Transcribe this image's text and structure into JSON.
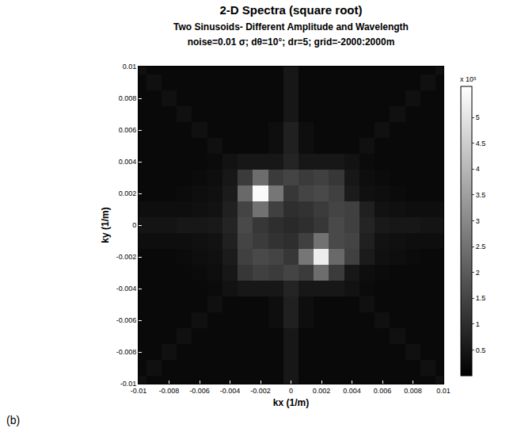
{
  "chart_data": {
    "type": "heatmap",
    "title": "2-D Spectra (square root)",
    "subtitle": [
      "Two Sinusoids- Different Amplitude and Wavelength",
      "noise=0.01 σ; dθ=10°; dr=5; grid=-2000:2000m"
    ],
    "panel": "(b)",
    "x_label": "kx (1/m)",
    "y_label": "ky (1/m)",
    "xlim": [
      -0.01,
      0.01
    ],
    "ylim": [
      -0.01,
      0.01
    ],
    "xticks": [
      -0.01,
      -0.008,
      -0.006,
      -0.004,
      -0.002,
      0,
      0.002,
      0.004,
      0.006,
      0.008,
      0.01
    ],
    "yticks": [
      -0.01,
      -0.008,
      -0.006,
      -0.004,
      -0.002,
      0,
      0.002,
      0.004,
      0.006,
      0.008,
      0.01
    ],
    "grid": false,
    "color": "gray",
    "x": [
      -0.01,
      -0.009,
      -0.008,
      -0.007,
      -0.006,
      -0.005,
      -0.004,
      -0.003,
      -0.002,
      -0.001,
      0,
      0.001,
      0.002,
      0.003,
      0.004,
      0.005,
      0.006,
      0.007,
      0.008,
      0.009,
      0.01
    ],
    "y": [
      -0.01,
      -0.009,
      -0.008,
      -0.007,
      -0.006,
      -0.005,
      -0.004,
      -0.003,
      -0.002,
      -0.001,
      0,
      0.001,
      0.002,
      0.003,
      0.004,
      0.005,
      0.006,
      0.007,
      0.008,
      0.009,
      0.01
    ],
    "z": [
      [
        0.35,
        0.2,
        0.2,
        0.2,
        0.2,
        0.2,
        0.2,
        0.2,
        0.2,
        0.2,
        0.5,
        0.2,
        0.2,
        0.2,
        0.2,
        0.2,
        0.2,
        0.2,
        0.2,
        0.2,
        0.35
      ],
      [
        0.2,
        0.35,
        0.2,
        0.2,
        0.2,
        0.2,
        0.2,
        0.2,
        0.2,
        0.2,
        0.5,
        0.2,
        0.2,
        0.2,
        0.2,
        0.2,
        0.2,
        0.2,
        0.2,
        0.35,
        0.2
      ],
      [
        0.2,
        0.2,
        0.35,
        0.2,
        0.2,
        0.2,
        0.2,
        0.2,
        0.2,
        0.2,
        0.5,
        0.2,
        0.2,
        0.2,
        0.2,
        0.2,
        0.2,
        0.2,
        0.35,
        0.2,
        0.2
      ],
      [
        0.2,
        0.2,
        0.2,
        0.35,
        0.2,
        0.2,
        0.2,
        0.2,
        0.2,
        0.2,
        0.5,
        0.2,
        0.2,
        0.2,
        0.2,
        0.2,
        0.2,
        0.35,
        0.2,
        0.2,
        0.2
      ],
      [
        0.2,
        0.2,
        0.2,
        0.2,
        0.35,
        0.2,
        0.2,
        0.2,
        0.2,
        0.3,
        0.7,
        0.3,
        0.2,
        0.2,
        0.2,
        0.2,
        0.35,
        0.2,
        0.2,
        0.2,
        0.2
      ],
      [
        0.2,
        0.2,
        0.2,
        0.2,
        0.2,
        0.35,
        0.2,
        0.2,
        0.2,
        0.3,
        0.7,
        0.3,
        0.2,
        0.2,
        0.2,
        0.35,
        0.2,
        0.2,
        0.2,
        0.2,
        0.2
      ],
      [
        0.2,
        0.2,
        0.2,
        0.2,
        0.2,
        0.25,
        0.4,
        0.5,
        0.5,
        0.5,
        0.8,
        0.5,
        0.5,
        0.5,
        0.4,
        0.25,
        0.2,
        0.2,
        0.2,
        0.2,
        0.2
      ],
      [
        0.2,
        0.2,
        0.2,
        0.2,
        0.25,
        0.3,
        0.5,
        1.2,
        1.4,
        1.3,
        1.5,
        1.3,
        2.4,
        1.3,
        0.5,
        0.3,
        0.25,
        0.2,
        0.2,
        0.2,
        0.2
      ],
      [
        0.2,
        0.2,
        0.2,
        0.25,
        0.3,
        0.35,
        0.6,
        1.4,
        1.6,
        1.5,
        1.2,
        2.6,
        5.2,
        2.3,
        1.4,
        0.6,
        0.35,
        0.3,
        0.25,
        0.2,
        0.2
      ],
      [
        0.3,
        0.3,
        0.3,
        0.3,
        0.35,
        0.4,
        0.7,
        1.5,
        1.3,
        1.1,
        1.0,
        1.4,
        2.5,
        1.6,
        1.5,
        0.7,
        0.4,
        0.35,
        0.3,
        0.3,
        0.3
      ],
      [
        0.45,
        0.45,
        0.45,
        0.5,
        0.5,
        0.55,
        0.8,
        1.6,
        1.2,
        1.0,
        0.9,
        1.0,
        1.2,
        1.6,
        1.4,
        0.8,
        0.55,
        0.5,
        0.5,
        0.45,
        0.45
      ],
      [
        0.3,
        0.3,
        0.3,
        0.3,
        0.35,
        0.4,
        0.7,
        1.5,
        2.5,
        1.4,
        1.0,
        1.1,
        1.3,
        1.5,
        1.4,
        0.7,
        0.4,
        0.35,
        0.3,
        0.3,
        0.3
      ],
      [
        0.2,
        0.2,
        0.2,
        0.25,
        0.3,
        0.35,
        0.6,
        2.3,
        5.5,
        2.6,
        1.2,
        1.5,
        1.6,
        1.4,
        0.6,
        0.35,
        0.3,
        0.25,
        0.2,
        0.2,
        0.2
      ],
      [
        0.2,
        0.2,
        0.2,
        0.2,
        0.25,
        0.3,
        0.5,
        1.3,
        2.4,
        1.3,
        1.5,
        1.3,
        1.4,
        1.2,
        0.5,
        0.3,
        0.25,
        0.2,
        0.2,
        0.2,
        0.2
      ],
      [
        0.2,
        0.2,
        0.2,
        0.2,
        0.2,
        0.25,
        0.4,
        0.5,
        0.5,
        0.5,
        0.8,
        0.5,
        0.5,
        0.5,
        0.4,
        0.25,
        0.2,
        0.2,
        0.2,
        0.2,
        0.2
      ],
      [
        0.2,
        0.2,
        0.2,
        0.2,
        0.2,
        0.35,
        0.2,
        0.2,
        0.2,
        0.3,
        0.7,
        0.3,
        0.2,
        0.2,
        0.2,
        0.35,
        0.2,
        0.2,
        0.2,
        0.2,
        0.2
      ],
      [
        0.2,
        0.2,
        0.2,
        0.2,
        0.35,
        0.2,
        0.2,
        0.2,
        0.2,
        0.3,
        0.7,
        0.3,
        0.2,
        0.2,
        0.2,
        0.2,
        0.35,
        0.2,
        0.2,
        0.2,
        0.2
      ],
      [
        0.2,
        0.2,
        0.2,
        0.35,
        0.2,
        0.2,
        0.2,
        0.2,
        0.2,
        0.2,
        0.5,
        0.2,
        0.2,
        0.2,
        0.2,
        0.2,
        0.2,
        0.35,
        0.2,
        0.2,
        0.2
      ],
      [
        0.2,
        0.2,
        0.35,
        0.2,
        0.2,
        0.2,
        0.2,
        0.2,
        0.2,
        0.2,
        0.5,
        0.2,
        0.2,
        0.2,
        0.2,
        0.2,
        0.2,
        0.2,
        0.35,
        0.2,
        0.2
      ],
      [
        0.2,
        0.35,
        0.2,
        0.2,
        0.2,
        0.2,
        0.2,
        0.2,
        0.2,
        0.2,
        0.5,
        0.2,
        0.2,
        0.2,
        0.2,
        0.2,
        0.2,
        0.2,
        0.2,
        0.35,
        0.2
      ],
      [
        0.35,
        0.2,
        0.2,
        0.2,
        0.2,
        0.2,
        0.2,
        0.2,
        0.2,
        0.2,
        0.5,
        0.2,
        0.2,
        0.2,
        0.2,
        0.2,
        0.2,
        0.2,
        0.2,
        0.2,
        0.35
      ]
    ],
    "colorbar": {
      "range": [
        0,
        5.6
      ],
      "ticks": [
        0.5,
        1,
        1.5,
        2,
        2.5,
        3,
        3.5,
        4,
        4.5,
        5
      ],
      "title": "x 10⁵"
    }
  }
}
